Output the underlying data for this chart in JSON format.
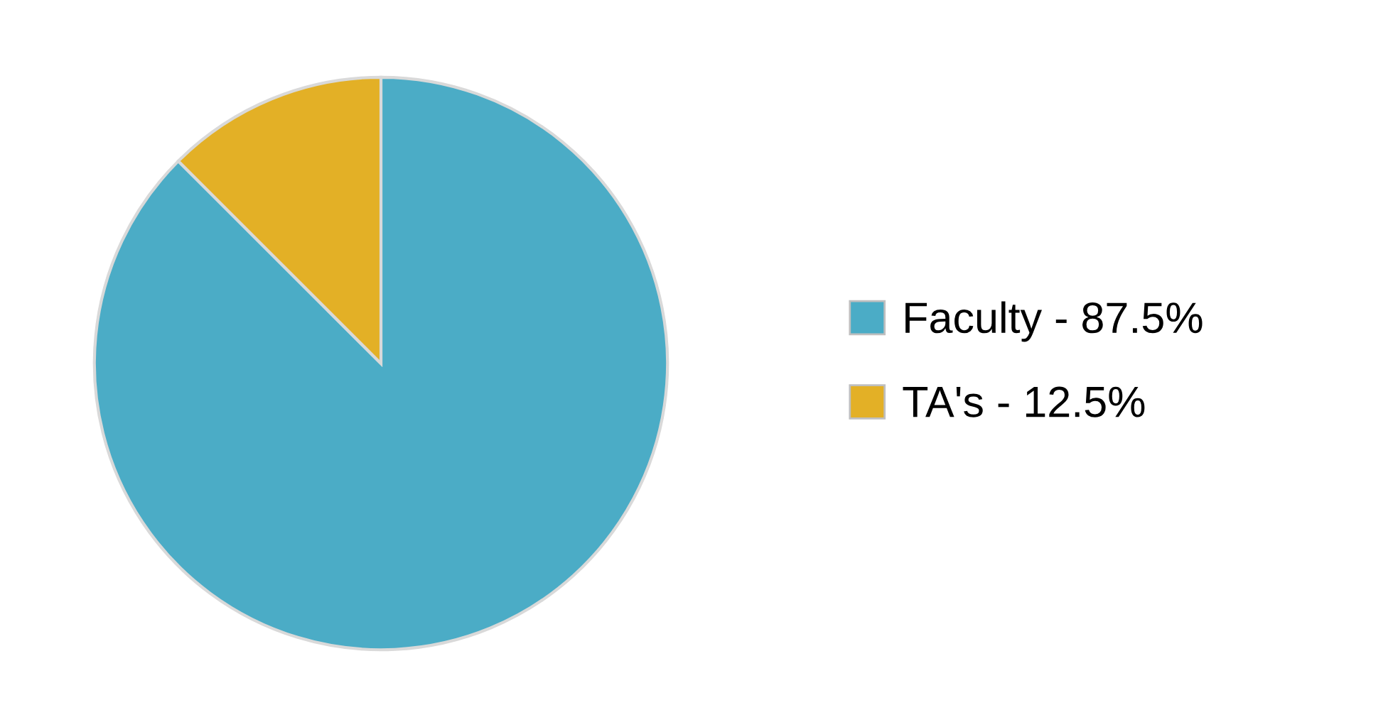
{
  "chart_data": {
    "type": "pie",
    "categories": [
      "Faculty - 87.5%",
      "TA's - 12.5%"
    ],
    "values": [
      87.5,
      12.5
    ],
    "colors": [
      "#4bacc6",
      "#e3b026"
    ],
    "legend": "right"
  }
}
